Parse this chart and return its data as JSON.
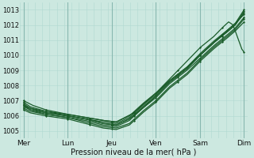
{
  "xlabel": "Pression niveau de la mer( hPa )",
  "bg_color": "#cce8e0",
  "grid_color_minor": "#b0d8d0",
  "grid_color_major": "#88b8b0",
  "line_color": "#1a5c2a",
  "ylim": [
    1004.5,
    1013.5
  ],
  "yticks": [
    1005,
    1006,
    1007,
    1008,
    1009,
    1010,
    1011,
    1012,
    1013
  ],
  "day_labels": [
    "Mer",
    "Lun",
    "Jeu",
    "Ven",
    "Sam",
    "Dim"
  ],
  "day_positions": [
    0,
    1,
    2,
    3,
    4,
    5
  ],
  "series": [
    {
      "knots_x": [
        0,
        0.15,
        0.5,
        1.0,
        1.4,
        1.8,
        2.1,
        2.4,
        2.7,
        3.0,
        3.3,
        3.7,
        4.0,
        4.3,
        4.6,
        4.8,
        5.0
      ],
      "knots_y": [
        1006.9,
        1006.6,
        1006.3,
        1006.1,
        1005.9,
        1005.7,
        1005.6,
        1006.0,
        1006.8,
        1007.5,
        1008.3,
        1009.2,
        1010.0,
        1010.8,
        1011.5,
        1012.0,
        1012.8
      ]
    },
    {
      "knots_x": [
        0,
        0.15,
        0.5,
        1.0,
        1.4,
        1.8,
        2.1,
        2.4,
        2.7,
        3.0,
        3.3,
        3.7,
        4.0,
        4.3,
        4.6,
        4.8,
        5.0
      ],
      "knots_y": [
        1006.7,
        1006.4,
        1006.2,
        1006.0,
        1005.8,
        1005.5,
        1005.4,
        1005.8,
        1006.5,
        1007.2,
        1008.1,
        1009.0,
        1009.8,
        1010.6,
        1011.3,
        1011.8,
        1012.5
      ]
    },
    {
      "knots_x": [
        0,
        0.15,
        0.5,
        1.0,
        1.4,
        1.8,
        2.1,
        2.4,
        2.7,
        3.0,
        3.3,
        3.7,
        4.0,
        4.3,
        4.6,
        4.8,
        5.0
      ],
      "knots_y": [
        1006.5,
        1006.3,
        1006.1,
        1005.9,
        1005.6,
        1005.3,
        1005.2,
        1005.5,
        1006.3,
        1007.0,
        1007.9,
        1008.8,
        1009.7,
        1010.5,
        1011.2,
        1011.7,
        1012.4
      ]
    },
    {
      "knots_x": [
        0,
        0.15,
        0.5,
        1.0,
        1.4,
        1.8,
        2.1,
        2.4,
        2.7,
        3.0,
        3.3,
        3.7,
        4.0,
        4.3,
        4.6,
        4.8,
        5.0
      ],
      "knots_y": [
        1006.6,
        1006.4,
        1006.1,
        1005.9,
        1005.7,
        1005.4,
        1005.3,
        1005.7,
        1006.5,
        1007.3,
        1008.2,
        1009.1,
        1010.0,
        1010.8,
        1011.6,
        1012.1,
        1013.0
      ]
    },
    {
      "knots_x": [
        0,
        0.15,
        0.5,
        1.0,
        1.4,
        1.8,
        2.1,
        2.4,
        2.7,
        3.0,
        3.3,
        3.7,
        4.0,
        4.3,
        4.6,
        4.8,
        5.0
      ],
      "knots_y": [
        1006.8,
        1006.5,
        1006.3,
        1006.0,
        1005.8,
        1005.6,
        1005.5,
        1005.9,
        1006.7,
        1007.4,
        1008.3,
        1009.2,
        1010.1,
        1010.9,
        1011.6,
        1012.1,
        1012.7
      ]
    },
    {
      "knots_x": [
        0,
        0.15,
        0.5,
        1.0,
        1.4,
        1.8,
        2.1,
        2.4,
        2.7,
        3.0,
        3.3,
        3.7,
        4.0,
        4.3,
        4.6,
        4.8,
        5.0
      ],
      "knots_y": [
        1006.4,
        1006.2,
        1006.0,
        1005.8,
        1005.5,
        1005.2,
        1005.1,
        1005.4,
        1006.2,
        1006.9,
        1007.8,
        1008.7,
        1009.6,
        1010.4,
        1011.1,
        1011.6,
        1012.2
      ]
    },
    {
      "knots_x": [
        0,
        0.15,
        0.5,
        1.0,
        1.4,
        1.8,
        2.1,
        2.4,
        2.7,
        3.0,
        3.3,
        3.7,
        4.0,
        4.3,
        4.6,
        4.8,
        5.0
      ],
      "knots_y": [
        1006.7,
        1006.5,
        1006.2,
        1006.0,
        1005.8,
        1005.5,
        1005.4,
        1005.8,
        1006.6,
        1007.3,
        1008.2,
        1009.1,
        1010.0,
        1010.8,
        1011.5,
        1012.0,
        1012.9
      ]
    },
    {
      "knots_x": [
        0,
        0.2,
        0.5,
        1.0,
        1.4,
        1.8,
        2.1,
        2.5,
        2.8,
        3.0,
        3.5,
        4.0,
        4.3,
        4.5,
        4.65,
        4.75,
        4.85,
        4.95,
        5.0
      ],
      "knots_y": [
        1007.0,
        1006.7,
        1006.4,
        1006.1,
        1005.9,
        1005.7,
        1005.6,
        1006.2,
        1007.0,
        1007.5,
        1009.0,
        1010.5,
        1011.2,
        1011.8,
        1012.2,
        1012.0,
        1011.2,
        1010.4,
        1010.2
      ]
    }
  ]
}
